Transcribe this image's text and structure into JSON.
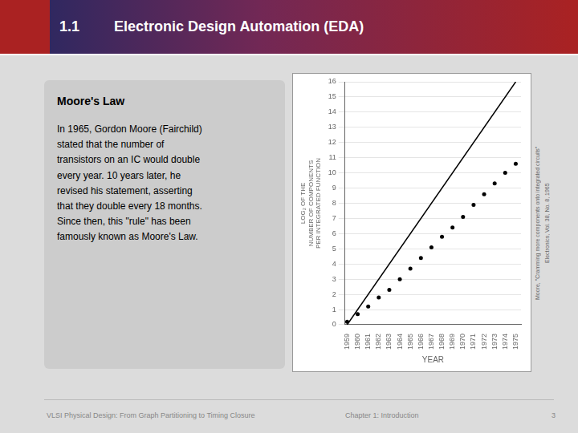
{
  "chart_data": {
    "type": "scatter",
    "title": "Electronic Design Automation (EDA)",
    "annotations": [
      "1.1",
      "Moore's Law",
      "In 1965, Gordon Moore (Fairchild)\nstated that the number of\ntransistors on an IC would double\nevery year. 10 years later, he\nrevised his statement, asserting\nthat they double every 18 months.\nSince then, this \"rule\" has been\nfamously known as Moore's Law.",
      "Moore, \"Cramming more components onto integrated circuits\"",
      "Electronics, Vol. 38, No. 8, 1965",
      "VLSI Physical Design: From Graph Partitioning to Timing Closure",
      "Chapter 1: Introduction",
      "3"
    ],
    "x_label": "YEAR",
    "y_label": "LOG₂ OF THE\nNUMBER OF COMPONENTS\nPER INTEGRATED FUNCTION",
    "series": [
      {
        "type": "scatter",
        "color": "#000000",
        "marker": "circle",
        "x": [
          1959,
          1960,
          1961,
          1962,
          1963,
          1964,
          1965,
          1966,
          1967,
          1968,
          1969,
          1970,
          1971,
          1972,
          1973,
          1974,
          1975
        ],
        "values": [
          0.2,
          0.7,
          1.2,
          1.8,
          2.3,
          3.0,
          3.7,
          4.4,
          5.1,
          5.8,
          6.4,
          7.1,
          7.9,
          8.6,
          9.3,
          10.0,
          10.6
        ]
      },
      {
        "type": "line",
        "color": "#000000",
        "line_style": "solid",
        "x": [
          1959,
          1975
        ],
        "values": [
          0,
          16
        ]
      }
    ],
    "xlim": [
      1958.8,
      1975.5
    ],
    "xticks": [
      1959,
      1960,
      1961,
      1962,
      1963,
      1964,
      1965,
      1966,
      1967,
      1968,
      1969,
      1970,
      1971,
      1972,
      1973,
      1974,
      1975
    ],
    "ylim": [
      0,
      16
    ],
    "yticks": [
      0,
      1,
      2,
      3,
      4,
      5,
      6,
      7,
      8,
      9,
      10,
      11,
      12,
      13,
      14,
      15,
      16
    ],
    "grid": "y"
  }
}
